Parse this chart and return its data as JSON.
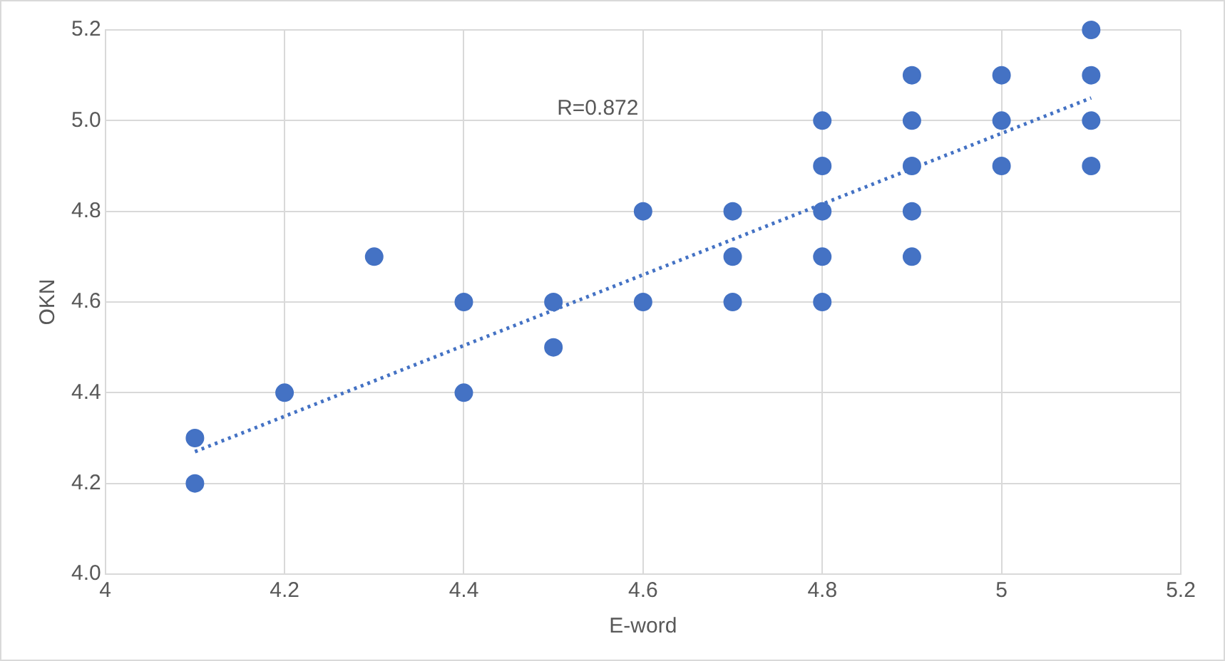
{
  "chart_data": {
    "type": "scatter",
    "xlabel": "E-word",
    "ylabel": "OKN",
    "marker": "circle",
    "grid": true,
    "legend": false,
    "xlim": [
      4,
      5.2
    ],
    "xticks": [
      4,
      4.2,
      4.4,
      4.6,
      4.8,
      5,
      5.2
    ],
    "ylim": [
      4,
      5.2
    ],
    "yticks": [
      {
        "value": 4,
        "label": "4.0"
      },
      4.2,
      4.4,
      4.6,
      4.8,
      {
        "value": 5,
        "label": "5.0"
      },
      5.2
    ],
    "annotations": [
      "R=0.872"
    ],
    "series": [
      {
        "color": "#4472c4",
        "x": [
          4.1,
          4.1,
          4.2,
          4.3,
          4.4,
          4.4,
          4.5,
          4.5,
          4.6,
          4.6,
          4.7,
          4.7,
          4.7,
          4.8,
          4.8,
          4.8,
          4.8,
          4.8,
          4.9,
          4.9,
          4.9,
          4.9,
          4.9,
          5,
          5,
          5,
          5.1,
          5.1,
          5.1,
          5.1
        ],
        "values": [
          4.3,
          4.2,
          4.4,
          4.7,
          4.6,
          4.4,
          4.6,
          4.5,
          4.8,
          4.6,
          4.8,
          4.7,
          4.6,
          5,
          4.9,
          4.8,
          4.7,
          4.6,
          5.1,
          5,
          4.9,
          4.8,
          4.7,
          5.1,
          5,
          4.9,
          5.2,
          5.1,
          5,
          4.9
        ]
      },
      {
        "type": "line",
        "color": "#4472c4",
        "line_style": "dotted",
        "marker": "none",
        "x": [
          4.1,
          5.1
        ],
        "values": [
          4.27,
          5.05
        ]
      }
    ]
  }
}
